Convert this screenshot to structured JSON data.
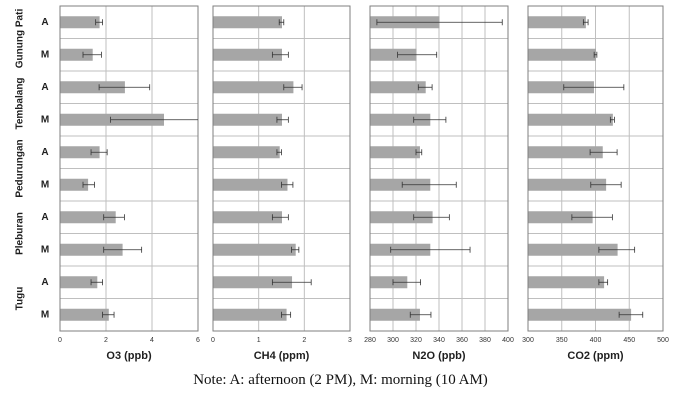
{
  "chart_data": {
    "type": "bar",
    "orientation": "horizontal",
    "groups": [
      "Gunung Pati",
      "Tembalang",
      "Pedurungan",
      "Pleburan",
      "Tugu"
    ],
    "rows": [
      "A",
      "M"
    ],
    "note": "Note: A: afternoon (2 PM), M: morning (10 AM)",
    "colors": {
      "bar": "#a6a6a6",
      "grid": "#bfbfbf",
      "frame": "#7f7f7f",
      "error": "#333333"
    },
    "panels": [
      {
        "xlabel": "O3 (ppb)",
        "xlim": [
          0,
          6
        ],
        "ticks": [
          "0",
          "2",
          "4",
          "6"
        ],
        "tick_values": [
          0,
          2,
          4,
          6
        ],
        "values": [
          1.7,
          1.4,
          2.8,
          4.5,
          1.7,
          1.2,
          2.4,
          2.7,
          1.6,
          2.1
        ],
        "err_low": [
          1.55,
          1.0,
          1.7,
          2.2,
          1.35,
          1.0,
          1.9,
          1.9,
          1.35,
          1.85
        ],
        "err_high": [
          1.85,
          1.8,
          3.9,
          6.5,
          2.05,
          1.5,
          2.8,
          3.55,
          1.85,
          2.35
        ]
      },
      {
        "xlabel": "CH4 (ppm)",
        "xlim": [
          0,
          3
        ],
        "ticks": [
          "0",
          "1",
          "2",
          "3"
        ],
        "tick_values": [
          0,
          1,
          2,
          3
        ],
        "values": [
          1.5,
          1.5,
          1.75,
          1.5,
          1.45,
          1.62,
          1.5,
          1.8,
          1.72,
          1.6
        ],
        "err_low": [
          1.45,
          1.3,
          1.55,
          1.4,
          1.4,
          1.5,
          1.3,
          1.72,
          1.3,
          1.5
        ],
        "err_high": [
          1.55,
          1.65,
          1.95,
          1.65,
          1.5,
          1.75,
          1.65,
          1.88,
          2.15,
          1.7
        ]
      },
      {
        "xlabel": "N2O (ppb)",
        "xlim": [
          280,
          400
        ],
        "ticks": [
          "280",
          "300",
          "320",
          "340",
          "360",
          "380",
          "400"
        ],
        "tick_values": [
          280,
          300,
          320,
          340,
          360,
          380,
          400
        ],
        "values": [
          340,
          320,
          328,
          332,
          323,
          332,
          334,
          332,
          312,
          323
        ],
        "err_low": [
          286,
          304,
          322,
          318,
          320,
          308,
          318,
          298,
          300,
          315
        ],
        "err_high": [
          395,
          338,
          334,
          346,
          325,
          355,
          349,
          367,
          324,
          333
        ]
      },
      {
        "xlabel": "CO2 (ppm)",
        "xlim": [
          300,
          500
        ],
        "ticks": [
          "300",
          "350",
          "400",
          "450",
          "500"
        ],
        "tick_values": [
          300,
          350,
          400,
          450,
          500
        ],
        "values": [
          385,
          400,
          397,
          425,
          410,
          415,
          395,
          432,
          412,
          452
        ],
        "err_low": [
          382,
          398,
          353,
          422,
          392,
          393,
          365,
          405,
          405,
          435
        ],
        "err_high": [
          389,
          402,
          442,
          428,
          432,
          438,
          425,
          458,
          418,
          470
        ]
      }
    ]
  }
}
